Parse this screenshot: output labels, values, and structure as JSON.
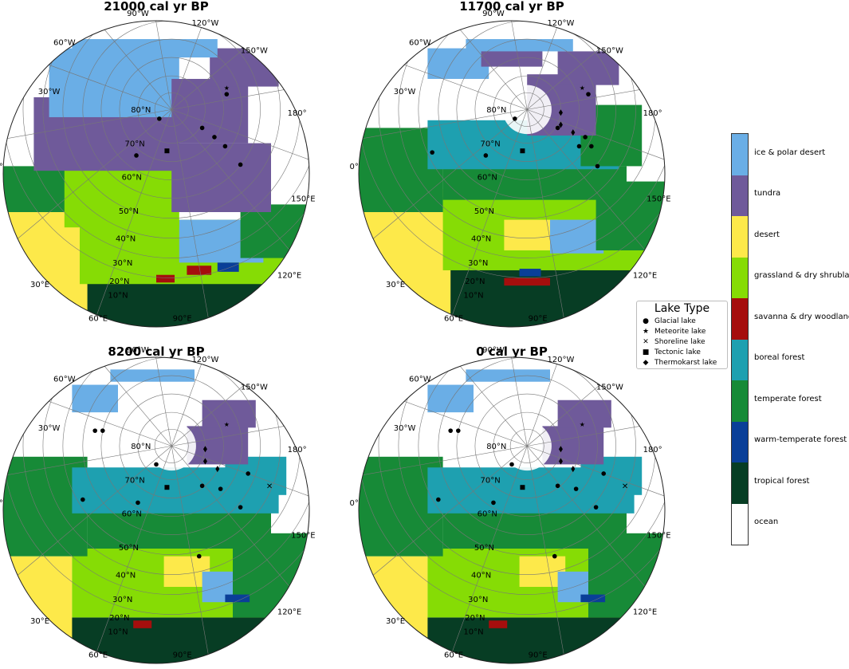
{
  "panels": [
    {
      "title": "21000 cal yr BP"
    },
    {
      "title": "11700 cal yr BP"
    },
    {
      "title": "8200 cal yr BP"
    },
    {
      "title": "0 cal yr BP"
    }
  ],
  "gridlabels": [
    "90°W",
    "120°W",
    "150°W",
    "180°",
    "150°E",
    "120°E",
    "90°E",
    "60°E",
    "30°E",
    "0°",
    "30°W",
    "60°W",
    "80°N",
    "70°N",
    "60°N",
    "50°N",
    "40°N",
    "30°N",
    "20°N",
    "10°N"
  ],
  "legend": {
    "title": "Lake Type",
    "items": [
      {
        "symbol": "●",
        "label": "Glacial lake"
      },
      {
        "symbol": "★",
        "label": "Meteorite lake"
      },
      {
        "symbol": "✕",
        "label": "Shoreline lake"
      },
      {
        "symbol": "■",
        "label": "Tectonic lake"
      },
      {
        "symbol": "◆",
        "label": "Thermokarst lake"
      }
    ]
  },
  "colorbar": [
    {
      "label": "ice & polar desert",
      "color": "#6aaee6"
    },
    {
      "label": "tundra",
      "color": "#6f5a9a"
    },
    {
      "label": "desert",
      "color": "#fde94a"
    },
    {
      "label": "grassland & dry shrubland",
      "color": "#86dc05"
    },
    {
      "label": "savanna & dry woodland",
      "color": "#a50e0d"
    },
    {
      "label": "boreal forest",
      "color": "#1ea0b0"
    },
    {
      "label": "temperate forest",
      "color": "#178a37"
    },
    {
      "label": "warm-temperate forest",
      "color": "#0a3f98"
    },
    {
      "label": "tropical forest",
      "color": "#073d24"
    },
    {
      "label": "ocean",
      "color": "#ffffff"
    }
  ]
}
